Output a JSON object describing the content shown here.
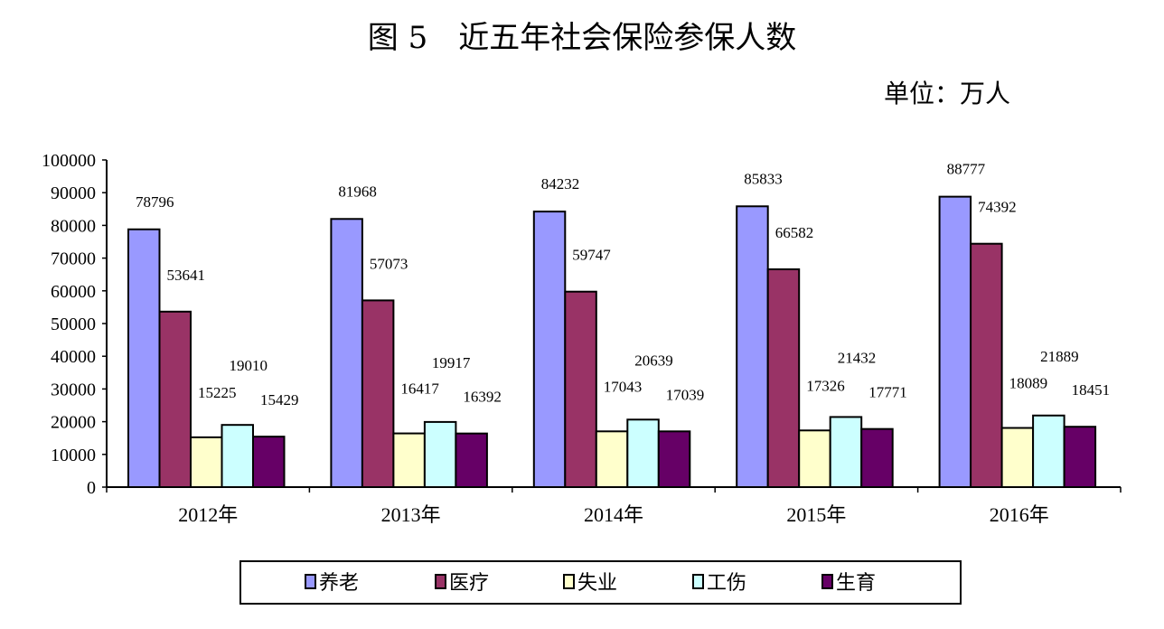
{
  "chart_data": {
    "type": "bar",
    "title": "图 5　近五年社会保险参保人数",
    "unit_label": "单位：万人",
    "xlabel": "",
    "ylabel": "",
    "categories": [
      "2012年",
      "2013年",
      "2014年",
      "2015年",
      "2016年"
    ],
    "series": [
      {
        "name": "养老",
        "color": "#9999FF",
        "values": [
          78796,
          81968,
          84232,
          85833,
          88777
        ]
      },
      {
        "name": "医疗",
        "color": "#993366",
        "values": [
          53641,
          57073,
          59747,
          66582,
          74392
        ]
      },
      {
        "name": "失业",
        "color": "#FFFFCC",
        "values": [
          15225,
          16417,
          17043,
          17326,
          18089
        ]
      },
      {
        "name": "工伤",
        "color": "#CCFFFF",
        "values": [
          19010,
          19917,
          20639,
          21432,
          21889
        ]
      },
      {
        "name": "生育",
        "color": "#660066",
        "values": [
          15429,
          16392,
          17039,
          17771,
          18451
        ]
      }
    ],
    "ylim": [
      0,
      100000
    ],
    "yticks": [
      0,
      10000,
      20000,
      30000,
      40000,
      50000,
      60000,
      70000,
      80000,
      90000,
      100000
    ],
    "grid": false,
    "legend": "bottom"
  }
}
